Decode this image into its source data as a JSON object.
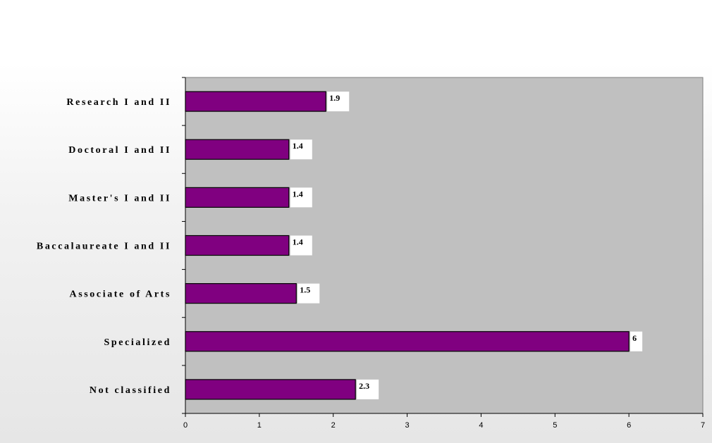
{
  "chart_data": {
    "type": "bar",
    "orientation": "horizontal",
    "categories": [
      "Research I and II",
      "Doctoral I and II",
      "Master's I and II",
      "Baccalaureate I and II",
      "Associate of Arts",
      "Specialized",
      "Not classified"
    ],
    "values": [
      1.9,
      1.4,
      1.4,
      1.4,
      1.5,
      6,
      2.3
    ],
    "data_labels": [
      "1.9",
      "1.4",
      "1.4",
      "1.4",
      "1.5",
      "6",
      "2.3"
    ],
    "xlim": [
      0,
      7
    ],
    "x_ticks": [
      "0",
      "1",
      "2",
      "3",
      "4",
      "5",
      "6",
      "7"
    ],
    "grid": false,
    "legend": "none",
    "colors": {
      "bar": "#800080",
      "plot_background": "#c0c0c0",
      "label_box": "#ffffff"
    }
  }
}
